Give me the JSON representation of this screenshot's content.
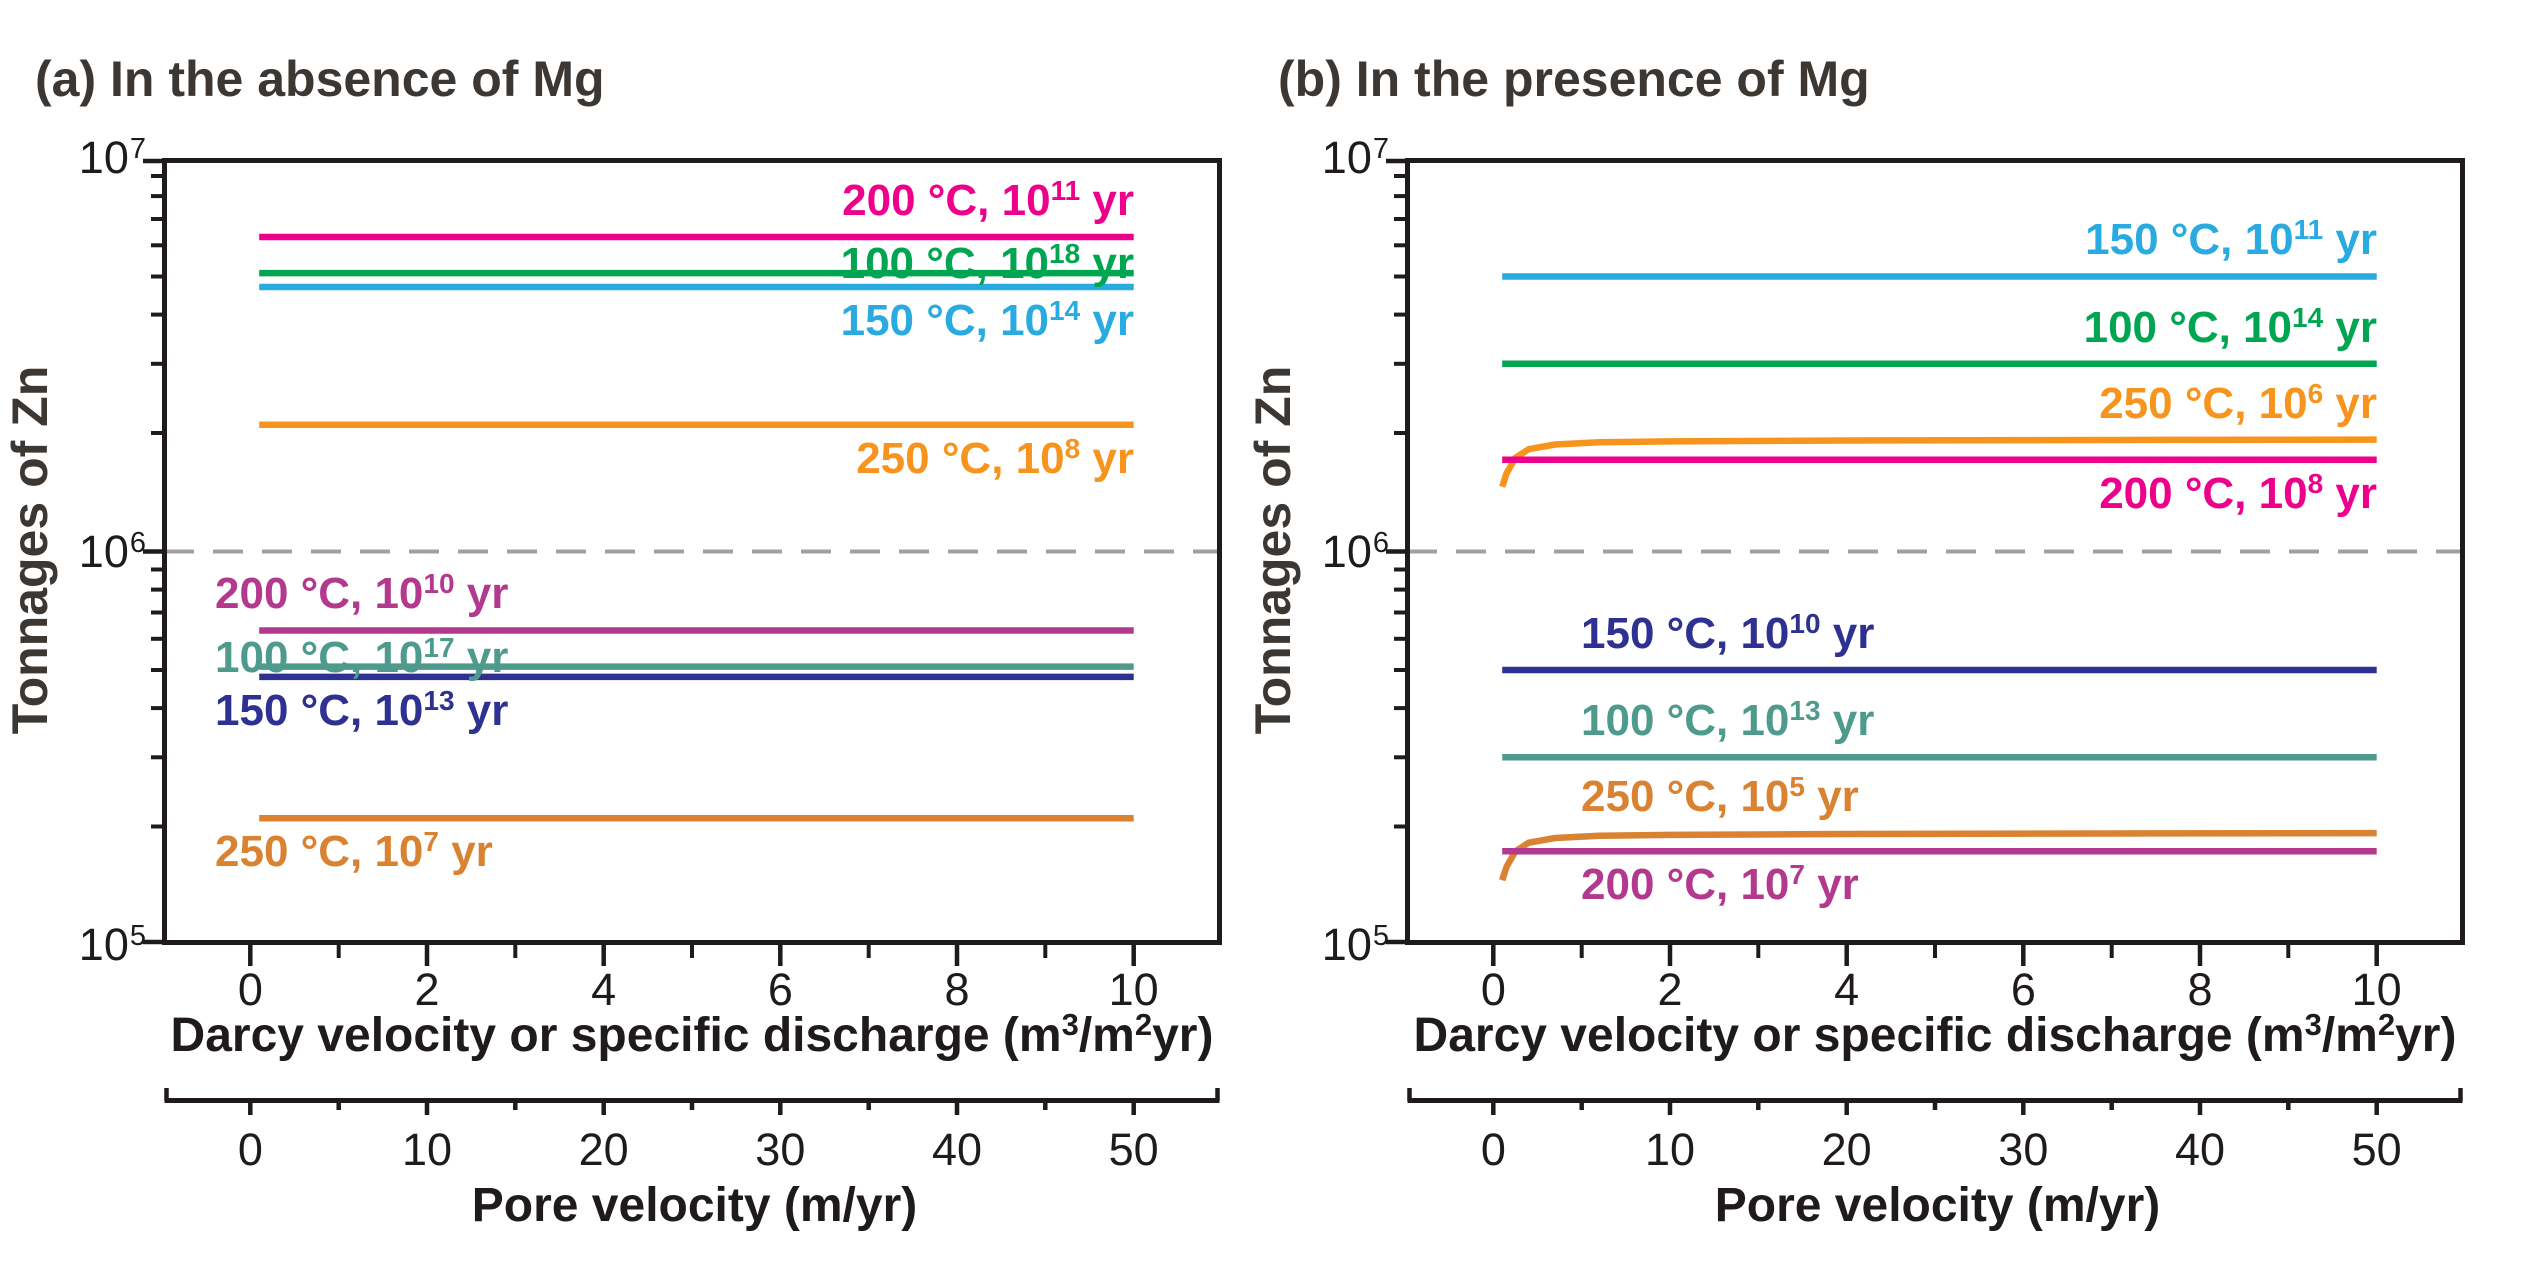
{
  "figure": {
    "background": "#ffffff",
    "axis_color": "#1e1b1a",
    "title_color": "#3c3733",
    "text_color": "#1e1b1a"
  },
  "chart_data": [
    {
      "type": "line",
      "panel": "a",
      "title": "(a) In the absence of Mg",
      "ylabel": "Tonnages of Zn",
      "xlabel": "Darcy velocity or specific discharge (m3/m2yr)",
      "xlabel_parts": {
        "pre": "Darcy velocity or specific discharge (m",
        "sup1": "3",
        "mid": "/m",
        "sup2": "2",
        "post": "yr)"
      },
      "x_ticks": [
        0,
        2,
        4,
        6,
        8,
        10
      ],
      "x_minor_ticks": [
        1,
        3,
        5,
        7,
        9
      ],
      "xlim": [
        -1,
        11
      ],
      "ylog": true,
      "ylim": [
        100000,
        10000000
      ],
      "y_ticks": [
        {
          "value": 10000000,
          "base": "10",
          "exp": "7"
        },
        {
          "value": 1000000,
          "base": "10",
          "exp": "6"
        },
        {
          "value": 100000,
          "base": "10",
          "exp": "5"
        }
      ],
      "grid": false,
      "legend_position": "inline-labels",
      "ref_line": {
        "value": 1000000,
        "style": "dashed",
        "color": "#a0a0a0"
      },
      "secondary_x": {
        "label": "Pore velocity (m/yr)",
        "ticks": [
          0,
          10,
          20,
          30,
          40,
          50
        ],
        "minor_step": 5
      },
      "series": [
        {
          "name": "200 °C, 10^11 yr",
          "label": {
            "pre": "200 °C, 10",
            "sup": "11",
            "post": " yr"
          },
          "color": "#ec008c",
          "x": [
            0.1,
            10
          ],
          "y": [
            6300000,
            6300000
          ]
        },
        {
          "name": "100 °C, 10^18 yr",
          "label": {
            "pre": "100 °C, 10",
            "sup": "18",
            "post": " yr"
          },
          "color": "#00a551",
          "x": [
            0.1,
            10
          ],
          "y": [
            5100000,
            5100000
          ]
        },
        {
          "name": "150 °C, 10^14 yr",
          "label": {
            "pre": "150 °C, 10",
            "sup": "14",
            "post": " yr"
          },
          "color": "#29abe2",
          "x": [
            0.1,
            10
          ],
          "y": [
            4700000,
            4700000
          ]
        },
        {
          "name": "250 °C, 10^8 yr",
          "label": {
            "pre": "250 °C, 10",
            "sup": "8",
            "post": " yr"
          },
          "color": "#f7941d",
          "x": [
            0.1,
            10
          ],
          "y": [
            2100000,
            2100000
          ]
        },
        {
          "name": "200 °C, 10^10 yr",
          "label": {
            "pre": "200 °C, 10",
            "sup": "10",
            "post": " yr"
          },
          "color": "#b3398e",
          "x": [
            0.1,
            10
          ],
          "y": [
            630000,
            630000
          ]
        },
        {
          "name": "100 °C, 10^17 yr",
          "label": {
            "pre": "100 °C, 10",
            "sup": "17",
            "post": " yr"
          },
          "color": "#4e9b8e",
          "x": [
            0.1,
            10
          ],
          "y": [
            510000,
            510000
          ]
        },
        {
          "name": "150 °C, 10^13 yr",
          "label": {
            "pre": "150 °C, 10",
            "sup": "13",
            "post": " yr"
          },
          "color": "#2e3192",
          "x": [
            0.1,
            10
          ],
          "y": [
            480000,
            480000
          ]
        },
        {
          "name": "250 °C, 10^7 yr",
          "label": {
            "pre": "250 °C, 10",
            "sup": "7",
            "post": " yr"
          },
          "color": "#d98232",
          "x": [
            0.1,
            10
          ],
          "y": [
            210000,
            210000
          ]
        }
      ]
    },
    {
      "type": "line",
      "panel": "b",
      "title": "(b) In the presence of Mg",
      "ylabel": "Tonnages of Zn",
      "xlabel": "Darcy velocity or specific discharge (m3/m2yr)",
      "xlabel_parts": {
        "pre": "Darcy velocity or specific discharge (m",
        "sup1": "3",
        "mid": "/m",
        "sup2": "2",
        "post": "yr)"
      },
      "x_ticks": [
        0,
        2,
        4,
        6,
        8,
        10
      ],
      "x_minor_ticks": [
        1,
        3,
        5,
        7,
        9
      ],
      "xlim": [
        -1,
        11
      ],
      "ylog": true,
      "ylim": [
        100000,
        10000000
      ],
      "y_ticks": [
        {
          "value": 10000000,
          "base": "10",
          "exp": "7"
        },
        {
          "value": 1000000,
          "base": "10",
          "exp": "6"
        },
        {
          "value": 100000,
          "base": "10",
          "exp": "5"
        }
      ],
      "grid": false,
      "legend_position": "inline-labels",
      "ref_line": {
        "value": 1000000,
        "style": "dashed",
        "color": "#a0a0a0"
      },
      "secondary_x": {
        "label": "Pore velocity (m/yr)",
        "ticks": [
          0,
          10,
          20,
          30,
          40,
          50
        ],
        "minor_step": 5
      },
      "series": [
        {
          "name": "150 °C, 10^11 yr",
          "label": {
            "pre": "150 °C, 10",
            "sup": "11",
            "post": " yr"
          },
          "color": "#29abe2",
          "x": [
            0.1,
            10
          ],
          "y": [
            5000000,
            5000000
          ]
        },
        {
          "name": "100 °C, 10^14 yr",
          "label": {
            "pre": "100 °C, 10",
            "sup": "14",
            "post": " yr"
          },
          "color": "#00a551",
          "x": [
            0.1,
            10
          ],
          "y": [
            3000000,
            3000000
          ]
        },
        {
          "name": "250 °C, 10^6 yr",
          "label": {
            "pre": "250 °C, 10",
            "sup": "6",
            "post": " yr"
          },
          "color": "#f7941d",
          "x": [
            0.1,
            0.15,
            0.25,
            0.4,
            0.7,
            1.2,
            2,
            4,
            7,
            10
          ],
          "y": [
            1460000,
            1580000,
            1730000,
            1820000,
            1870000,
            1895000,
            1905000,
            1915000,
            1920000,
            1925000
          ]
        },
        {
          "name": "200 °C, 10^8 yr",
          "label": {
            "pre": "200 °C, 10",
            "sup": "8",
            "post": " yr"
          },
          "color": "#ec008c",
          "x": [
            0.1,
            10
          ],
          "y": [
            1710000,
            1710000
          ]
        },
        {
          "name": "150 °C, 10^10 yr",
          "label": {
            "pre": "150 °C, 10",
            "sup": "10",
            "post": " yr"
          },
          "color": "#2e3192",
          "x": [
            0.1,
            10
          ],
          "y": [
            500000,
            500000
          ]
        },
        {
          "name": "100 °C, 10^13 yr",
          "label": {
            "pre": "100 °C, 10",
            "sup": "13",
            "post": " yr"
          },
          "color": "#4e9b8e",
          "x": [
            0.1,
            10
          ],
          "y": [
            300000,
            300000
          ]
        },
        {
          "name": "250 °C, 10^5 yr",
          "label": {
            "pre": "250 °C, 10",
            "sup": "5",
            "post": " yr"
          },
          "color": "#d98232",
          "x": [
            0.1,
            0.15,
            0.25,
            0.4,
            0.7,
            1.2,
            2,
            4,
            7,
            10
          ],
          "y": [
            146000,
            158000,
            173000,
            182000,
            187000,
            189500,
            190500,
            191500,
            192000,
            192500
          ]
        },
        {
          "name": "200 °C, 10^7 yr",
          "label": {
            "pre": "200 °C, 10",
            "sup": "7",
            "post": " yr"
          },
          "color": "#b3398e",
          "x": [
            0.1,
            10
          ],
          "y": [
            173000,
            173000
          ]
        }
      ]
    }
  ]
}
